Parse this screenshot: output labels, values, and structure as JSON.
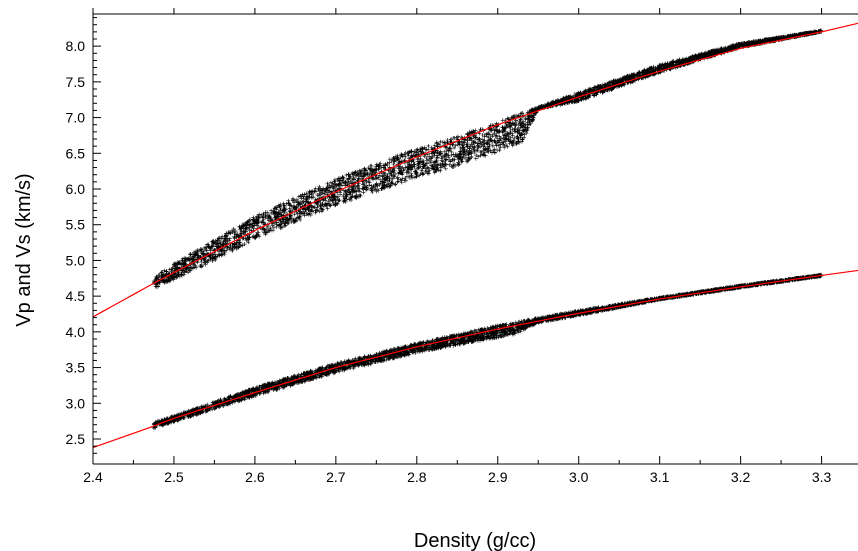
{
  "chart_data": {
    "type": "scatter",
    "title": "",
    "xlabel": "Density (g/cc)",
    "ylabel": "Vp and Vs (km/s)",
    "xlim": [
      2.4,
      3.345
    ],
    "ylim": [
      2.15,
      8.45
    ],
    "x_ticks": [
      "2.4",
      "2.5",
      "2.6",
      "2.7",
      "2.8",
      "2.9",
      "3.0",
      "3.1",
      "3.2",
      "3.3"
    ],
    "y_ticks": [
      "2.5",
      "3.0",
      "3.5",
      "4.0",
      "4.5",
      "5.0",
      "5.5",
      "6.0",
      "6.5",
      "7.0",
      "7.5",
      "8.0"
    ],
    "grid": false,
    "series": [
      {
        "kind": "scatter-band",
        "marker": "+",
        "color": "#000000",
        "x_range": [
          2.475,
          3.3
        ],
        "upper": [
          [
            2.475,
            4.78
          ],
          [
            2.55,
            5.29
          ],
          [
            2.6,
            5.62
          ],
          [
            2.7,
            6.14
          ],
          [
            2.8,
            6.57
          ],
          [
            2.85,
            6.74
          ],
          [
            2.9,
            6.94
          ],
          [
            3.0,
            7.35
          ],
          [
            3.1,
            7.74
          ],
          [
            3.2,
            8.04
          ],
          [
            3.3,
            8.22
          ]
        ],
        "lower": [
          [
            2.475,
            4.6
          ],
          [
            2.55,
            5.0
          ],
          [
            2.6,
            5.3
          ],
          [
            2.7,
            5.77
          ],
          [
            2.8,
            6.16
          ],
          [
            2.85,
            6.32
          ],
          [
            2.9,
            6.52
          ],
          [
            2.93,
            6.66
          ],
          [
            2.95,
            7.12
          ],
          [
            3.0,
            7.23
          ],
          [
            3.1,
            7.63
          ],
          [
            3.2,
            7.98
          ],
          [
            3.3,
            8.2
          ]
        ]
      },
      {
        "kind": "scatter-band",
        "marker": "+",
        "color": "#000000",
        "x_range": [
          2.475,
          3.3
        ],
        "upper": [
          [
            2.475,
            2.73
          ],
          [
            2.55,
            3.02
          ],
          [
            2.6,
            3.22
          ],
          [
            2.7,
            3.56
          ],
          [
            2.8,
            3.84
          ],
          [
            2.9,
            4.09
          ],
          [
            3.0,
            4.3
          ],
          [
            3.1,
            4.48
          ],
          [
            3.2,
            4.65
          ],
          [
            3.3,
            4.8
          ]
        ],
        "lower": [
          [
            2.475,
            2.65
          ],
          [
            2.55,
            2.92
          ],
          [
            2.6,
            3.1
          ],
          [
            2.7,
            3.43
          ],
          [
            2.8,
            3.71
          ],
          [
            2.9,
            3.92
          ],
          [
            2.92,
            3.96
          ],
          [
            2.95,
            4.13
          ],
          [
            3.0,
            4.23
          ],
          [
            3.1,
            4.45
          ],
          [
            3.2,
            4.62
          ],
          [
            3.3,
            4.78
          ]
        ]
      },
      {
        "kind": "line",
        "color": "#ff0000",
        "points": [
          [
            2.4,
            4.21
          ],
          [
            2.475,
            4.68
          ],
          [
            2.5,
            4.83
          ],
          [
            2.6,
            5.42
          ],
          [
            2.7,
            5.96
          ],
          [
            2.8,
            6.45
          ],
          [
            2.9,
            6.9
          ],
          [
            3.0,
            7.29
          ],
          [
            3.1,
            7.65
          ],
          [
            3.2,
            7.97
          ],
          [
            3.3,
            8.2
          ],
          [
            3.345,
            8.32
          ]
        ]
      },
      {
        "kind": "line",
        "color": "#ff0000",
        "points": [
          [
            2.4,
            2.38
          ],
          [
            2.475,
            2.68
          ],
          [
            2.5,
            2.79
          ],
          [
            2.6,
            3.15
          ],
          [
            2.7,
            3.5
          ],
          [
            2.8,
            3.79
          ],
          [
            2.9,
            4.04
          ],
          [
            3.0,
            4.26
          ],
          [
            3.1,
            4.46
          ],
          [
            3.2,
            4.63
          ],
          [
            3.3,
            4.79
          ],
          [
            3.345,
            4.86
          ]
        ]
      }
    ]
  }
}
